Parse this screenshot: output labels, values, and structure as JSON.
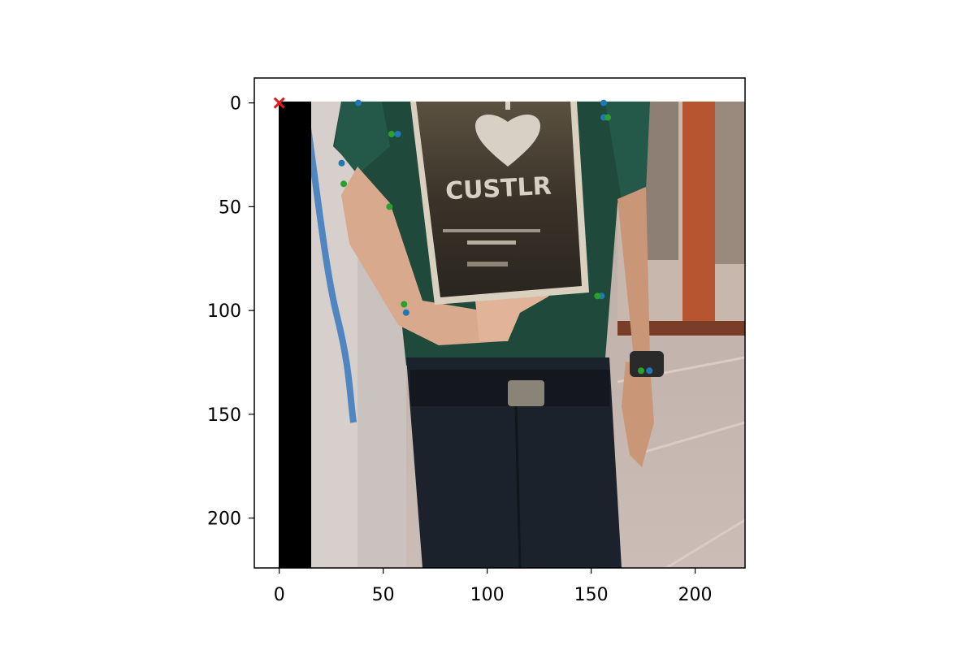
{
  "chart_data": {
    "type": "scatter",
    "xlim": [
      -12,
      224
    ],
    "ylim": [
      224,
      -12
    ],
    "x_ticks": [
      0,
      50,
      100,
      150,
      200
    ],
    "y_ticks": [
      0,
      50,
      100,
      150,
      200
    ],
    "grid": false,
    "background_image": "photo-person-holding-sign",
    "image_text": "CUSTLR",
    "series": [
      {
        "marker": "dot",
        "color": "#1f77b4",
        "points": [
          [
            38,
            0
          ],
          [
            57,
            15
          ],
          [
            30,
            29
          ],
          [
            61,
            101
          ],
          [
            156,
            0
          ],
          [
            156,
            7
          ],
          [
            155,
            93
          ],
          [
            178,
            129
          ]
        ]
      },
      {
        "marker": "dot",
        "color": "#2ca02c",
        "points": [
          [
            54,
            15
          ],
          [
            31,
            39
          ],
          [
            53,
            50
          ],
          [
            60,
            97
          ],
          [
            158,
            7
          ],
          [
            153,
            93
          ],
          [
            174,
            129
          ]
        ]
      },
      {
        "marker": "x",
        "color": "#e31a1c",
        "points": [
          [
            0,
            0
          ]
        ]
      }
    ]
  }
}
